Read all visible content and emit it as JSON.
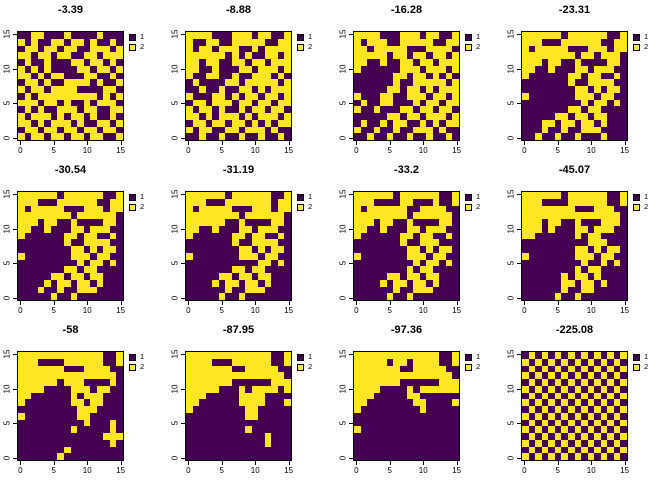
{
  "figure": {
    "background": "#ffffff"
  },
  "chart_data": {
    "type": "heatmap",
    "layout": {
      "rows": 3,
      "cols": 4,
      "legend_position": "right-of-each-panel",
      "grid": "off"
    },
    "cell_grid_size": 16,
    "colors": {
      "1": "#440154",
      "2": "#FDE725"
    },
    "legend": {
      "items": [
        {
          "label": "1",
          "color": "#440154"
        },
        {
          "label": "2",
          "color": "#FDE725"
        }
      ]
    },
    "axes": {
      "x_ticks": [
        "0",
        "5",
        "10",
        "15"
      ],
      "y_ticks": [
        "0",
        "5",
        "10",
        "15"
      ],
      "x_range": [
        0,
        15
      ],
      "y_range": [
        0,
        15
      ]
    },
    "panels": [
      {
        "title": "-3.39",
        "rows": [
          "1122111211112111",
          "2121122122121121",
          "1221221221122212",
          "2212212211221222",
          "1211211122122121",
          "2121211112212212",
          "2212122111221121",
          "1221211222212112",
          "2122122221111221",
          "1212222222221212",
          "2221221211212221",
          "1212112221221122",
          "2122212122121121",
          "2212122212112212",
          "1221221221221221",
          "2122122122122112"
        ]
      },
      {
        "title": "-8.88",
        "rows": [
          "2222111222122112",
          "2112211222221122",
          "2122122211212222",
          "2222221212112212",
          "2212211221221222",
          "2211211122122212",
          "2112211211222121",
          "1211112212222212",
          "1121121122121222",
          "2111221212212212",
          "1221222122122122",
          "2122121121221221",
          "2212122212122212",
          "1221221221212122",
          "2122112212221211",
          "1121121121121121"
        ]
      },
      {
        "title": "-16.28",
        "rows": [
          "2222111222122112",
          "2122211222221122",
          "2212222211122221",
          "2222212212212212",
          "2211211221221222",
          "2111111222122212",
          "1111112212212121",
          "1111112112222212",
          "1111122122121222",
          "2111221122212212",
          "1211221112122122",
          "2112111221221221",
          "1111122122122212",
          "1211212211212122",
          "2112112112221211",
          "1121121121121121"
        ]
      },
      {
        "title": "-23.31",
        "rows": [
          "2222221222222112",
          "2221112222221122",
          "2122222111222122",
          "2222222212212221",
          "2221221121111221",
          "2211211122122211",
          "2111111221221121",
          "1111111211222211",
          "1111111122121221",
          "2111111122212211",
          "1111111112122121",
          "1111111221221111",
          "1111122122122111",
          "1112212212212111",
          "1112112112221111",
          "1121121121112111"
        ]
      },
      {
        "title": "-30.54",
        "rows": [
          "2222221222222112",
          "2221112222221122",
          "2122222111222122",
          "2222222212222221",
          "2221221121111221",
          "2211211122122211",
          "2111111221221121",
          "1111111211222211",
          "1111111122121221",
          "2111111122212211",
          "1111111112122121",
          "1111111221221111",
          "1111122122122111",
          "1111212212212111",
          "1112112112221111",
          "1111121121111111"
        ]
      },
      {
        "title": "-31.19",
        "rows": [
          "2222221222222112",
          "2221112222222122",
          "2122222111222122",
          "2222222212222221",
          "2222221121111221",
          "2211211122122211",
          "2111111221221121",
          "1111111211222211",
          "1111111122121221",
          "2111111122212211",
          "1111111111122121",
          "1111111221221111",
          "1111122122122111",
          "1111212212212111",
          "1111112112221111",
          "1111121121111111"
        ]
      },
      {
        "title": "-33.2",
        "rows": [
          "2222221222222112",
          "2221111221112112",
          "2122222211222211",
          "2222222212222221",
          "2221221121111221",
          "2211211122122211",
          "2111111221221121",
          "1111111211222111",
          "1111111122121221",
          "2111111122212211",
          "1111111112122121",
          "1111111121221111",
          "1111122122122111",
          "1111212212212111",
          "1111112112221111",
          "1111121121111111"
        ]
      },
      {
        "title": "-45.07",
        "rows": [
          "2222221222222112",
          "2221111222222112",
          "2222222211122211",
          "2222222222222221",
          "2221221121112221",
          "2221211122122211",
          "2211111121221111",
          "1111111111222111",
          "1111111122121221",
          "2111111122212211",
          "1111111112112121",
          "1111111121221111",
          "1111112122121111",
          "1111112212212111",
          "1111112112211111",
          "1111121121111111"
        ]
      },
      {
        "title": "-58",
        "rows": [
          "2222222222222112",
          "2221111222222112",
          "2222222111222211",
          "2222222222222221",
          "2222221222111121",
          "2222111122212211",
          "2211111121222111",
          "2111111122122111",
          "1111111112221111",
          "2111111112211111",
          "1111111111211121",
          "1111111121111121",
          "1111111111111222",
          "1111111111111121",
          "1111111211111111",
          "1111112111111111"
        ]
      },
      {
        "title": "-87.95",
        "rows": [
          "2222222222222112",
          "2222111222222112",
          "2222222112222211",
          "2222222222222221",
          "2222222111111222",
          "2222211121222212",
          "2221111122221111",
          "2211111122221112",
          "2111111112211111",
          "1111111112211111",
          "1111111111111111",
          "1111111112111111",
          "1111111111112111",
          "1111111111112111",
          "1111111111111111",
          "1111111111111111"
        ]
      },
      {
        "title": "-97.36",
        "rows": [
          "2222222222222112",
          "2222212212222112",
          "2222222112222211",
          "2222222222222221",
          "2222222111111222",
          "2222111121222222",
          "2221111122111111",
          "2211111112211112",
          "2111111111211111",
          "1111111111111111",
          "1111111111111111",
          "2111111111111111",
          "1111111111111111",
          "1111111111111111",
          "1111111111111111",
          "1111111111111111"
        ]
      },
      {
        "title": "-225.08",
        "rows": [
          "1212121212121212",
          "2121212121212121",
          "1212121212121212",
          "2121212121212121",
          "1212121212121212",
          "2121212121212121",
          "1212121212121212",
          "2121212121212121",
          "1212121212121212",
          "2121212121212121",
          "1212121212121212",
          "2121212121212121",
          "1212121212121212",
          "2121212121212121",
          "1212121212121212",
          "2121212121212121"
        ]
      }
    ]
  }
}
